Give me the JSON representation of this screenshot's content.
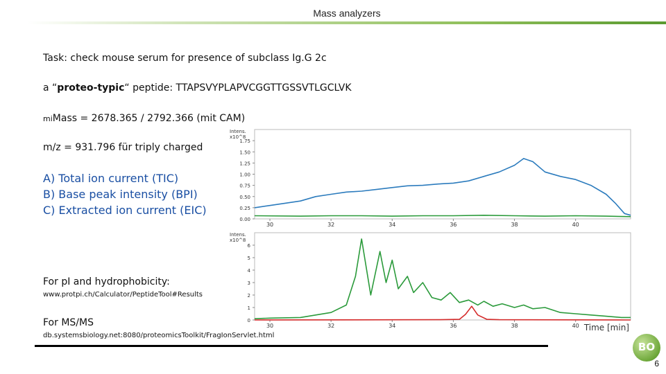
{
  "header": {
    "title": "Mass analyzers"
  },
  "content": {
    "task": "Task: check mouse serum for presence of subclass Ig.G 2c",
    "peptide_prefix": "a “",
    "peptide_bold": "proteo-typic",
    "peptide_suffix": "“ peptide: TTAPSVYPLAPVCGGTTGSSVTLGCLVK",
    "mass_prefix": "mi",
    "mass_text": "Mass =  2678.365 / 2792.366 (mit CAM)",
    "mz": "m/z = 931.796 für triply charged",
    "list": [
      "A) Total ion current (TIC)",
      "B) Base peak intensity (BPI)",
      "C) Extracted ion current (EIC)"
    ],
    "pi_label": "For pI and hydrophobicity:",
    "pi_url": "www.protpi.ch/Calculator/PeptideTool#Results",
    "msms_label": "For MS/MS",
    "msms_url": "db.systemsbiology.net:8080/proteomicsToolkit/FragIonServlet.html"
  },
  "logo_text": "BO",
  "page_number": "6",
  "chart_data": [
    {
      "type": "line",
      "ylabel": "Intens.",
      "yunit": "x10^8",
      "ylim": [
        0,
        2.0
      ],
      "yticks": [
        "0.00",
        "0.25",
        "0.50",
        "0.75",
        "1.00",
        "1.25",
        "1.50",
        "1.75"
      ],
      "xlim": [
        29.5,
        41.8
      ],
      "xticks": [
        "30",
        "32",
        "34",
        "36",
        "38",
        "40"
      ],
      "series": [
        {
          "color": "#2b7bbd",
          "x": [
            29.5,
            30,
            30.5,
            31,
            31.5,
            32,
            32.5,
            33,
            33.5,
            34,
            34.5,
            35,
            35.5,
            36,
            36.5,
            37,
            37.5,
            38,
            38.3,
            38.6,
            39,
            39.5,
            40,
            40.5,
            41,
            41.3,
            41.6,
            41.8
          ],
          "y": [
            0.25,
            0.3,
            0.35,
            0.4,
            0.5,
            0.55,
            0.6,
            0.62,
            0.66,
            0.7,
            0.74,
            0.75,
            0.78,
            0.8,
            0.85,
            0.95,
            1.05,
            1.2,
            1.35,
            1.28,
            1.05,
            0.95,
            0.88,
            0.75,
            0.55,
            0.35,
            0.12,
            0.08
          ]
        },
        {
          "color": "#2a9a3a",
          "x": [
            29.5,
            31,
            32,
            33,
            34,
            35,
            36,
            37,
            38,
            39,
            40,
            41,
            41.8
          ],
          "y": [
            0.07,
            0.06,
            0.07,
            0.07,
            0.06,
            0.07,
            0.07,
            0.08,
            0.07,
            0.06,
            0.07,
            0.06,
            0.05
          ]
        }
      ]
    },
    {
      "type": "line",
      "ylabel": "Intens.",
      "yunit": "x10^8",
      "xlabel": "Time [min]",
      "ylim": [
        0,
        7.0
      ],
      "yticks": [
        "0",
        "1",
        "2",
        "3",
        "4",
        "5",
        "6"
      ],
      "xlim": [
        29.5,
        41.8
      ],
      "xticks": [
        "30",
        "32",
        "34",
        "36",
        "38",
        "40"
      ],
      "series": [
        {
          "color": "#2a9a3a",
          "x": [
            29.5,
            30,
            31,
            32,
            32.5,
            32.8,
            33,
            33.3,
            33.6,
            33.8,
            34,
            34.2,
            34.5,
            34.7,
            35,
            35.3,
            35.6,
            35.9,
            36.2,
            36.5,
            36.8,
            37,
            37.3,
            37.6,
            38,
            38.3,
            38.6,
            39,
            39.5,
            40,
            40.5,
            41,
            41.5,
            41.8
          ],
          "y": [
            0.1,
            0.15,
            0.2,
            0.6,
            1.2,
            3.5,
            6.5,
            2.0,
            5.5,
            3.0,
            4.8,
            2.5,
            3.5,
            2.2,
            3.0,
            1.8,
            1.6,
            2.2,
            1.4,
            1.6,
            1.2,
            1.5,
            1.1,
            1.3,
            1.0,
            1.2,
            0.9,
            1.0,
            0.6,
            0.5,
            0.4,
            0.3,
            0.2,
            0.2
          ]
        },
        {
          "color": "#d42a2a",
          "x": [
            29.5,
            35.5,
            36.2,
            36.4,
            36.6,
            36.8,
            37.1,
            37.5,
            41.8
          ],
          "y": [
            0.0,
            0.02,
            0.05,
            0.45,
            1.1,
            0.4,
            0.05,
            0.02,
            0.0
          ]
        }
      ]
    }
  ]
}
